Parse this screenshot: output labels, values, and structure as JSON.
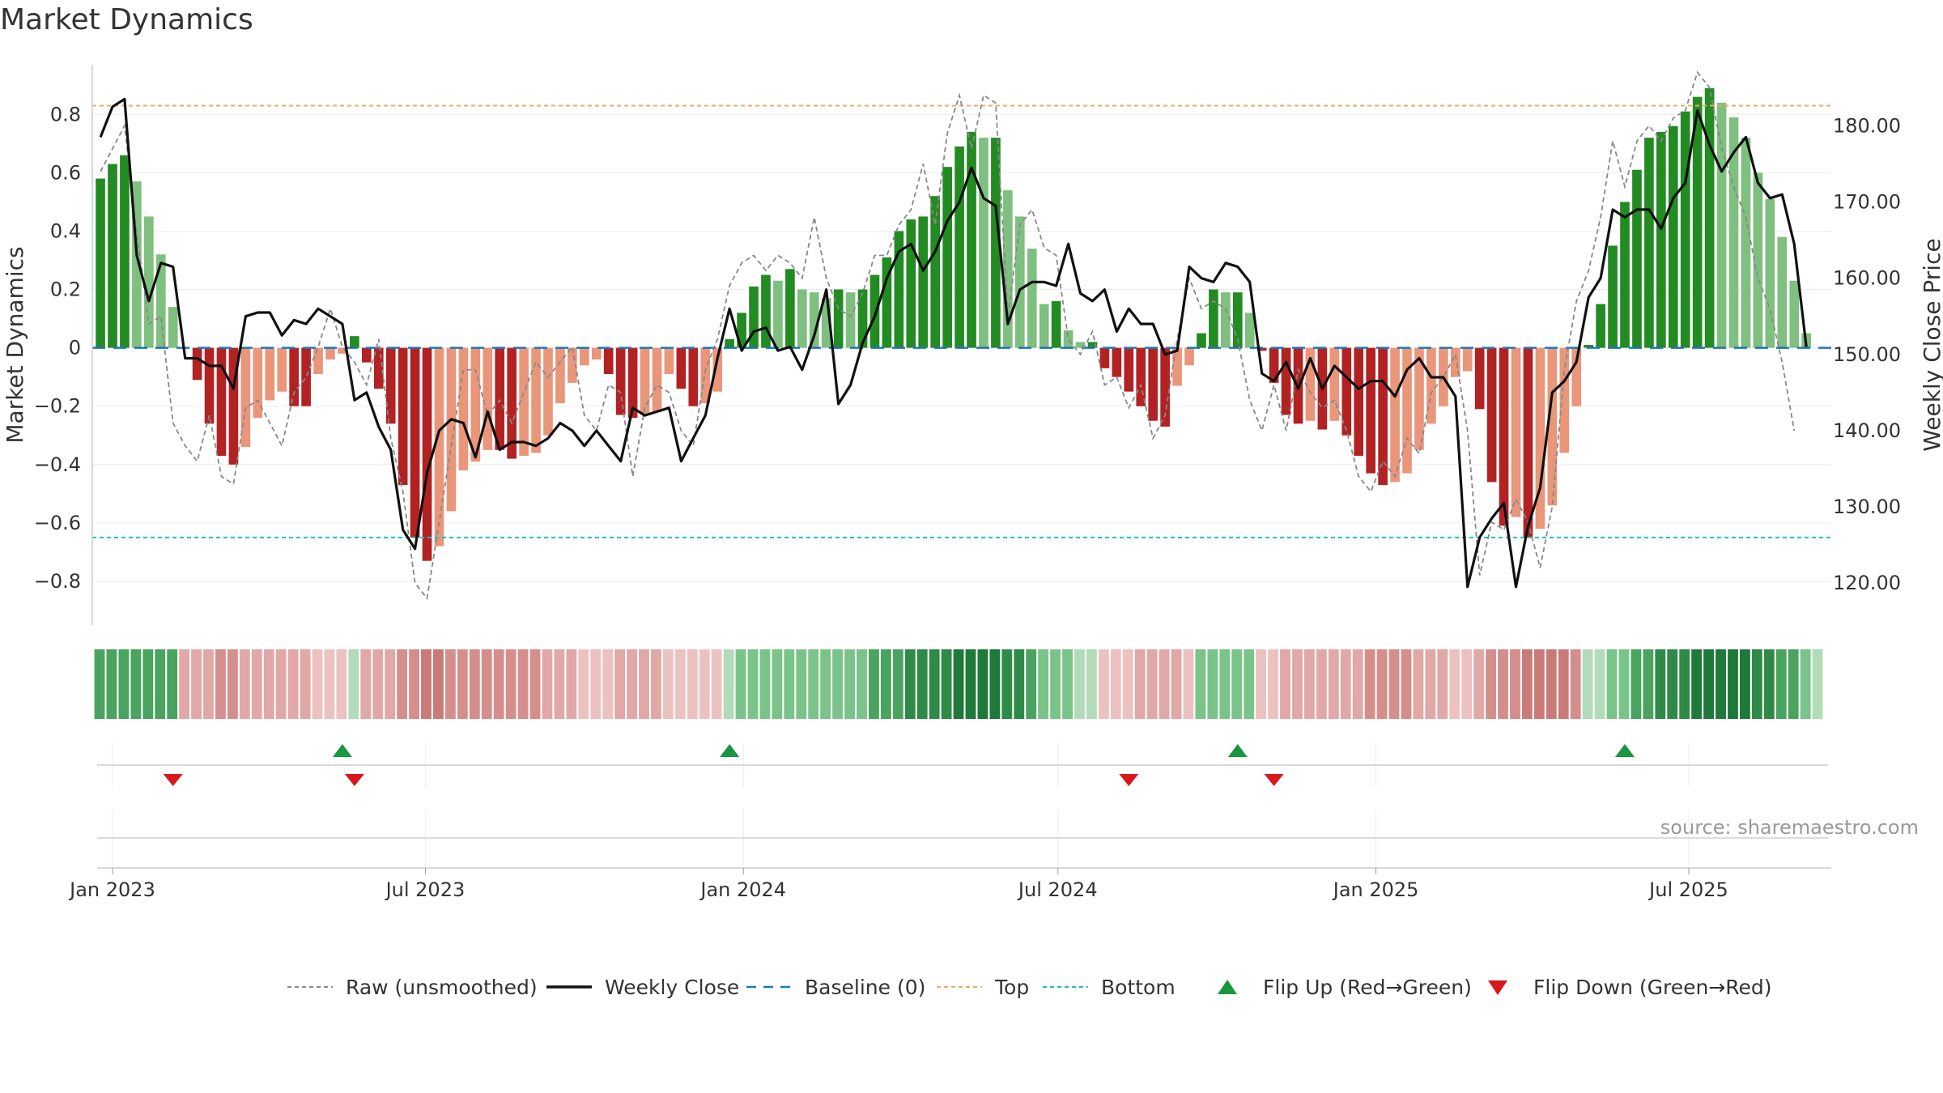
{
  "title": "Market Dynamics",
  "source": "source: sharemaestro.com",
  "colors": {
    "strong_green": "#228B22",
    "light_green": "#7FBF7F",
    "strong_red": "#B22222",
    "light_red": "#E9967A",
    "close_line": "#111111",
    "raw_line": "#888888",
    "baseline": "#1f77b4",
    "top": "#f0a868",
    "bottom": "#17becf",
    "flip_up": "#1a9641",
    "flip_down": "#d7191c"
  },
  "chart_data": {
    "type": "bar",
    "title": "Market Dynamics",
    "ylabel": "Market Dynamics",
    "y2label": "Weekly Close Price",
    "ylim": [
      -0.95,
      0.97
    ],
    "y2lim": [
      114.5,
      188.0
    ],
    "yticks": [
      0.8,
      0.6,
      0.4,
      0.2,
      0,
      -0.2,
      -0.4,
      -0.6,
      -0.8
    ],
    "ytick_labels": [
      "0.8",
      "0.6",
      "0.4",
      "0.2",
      "0",
      "−0.2",
      "−0.4",
      "−0.6",
      "−0.8"
    ],
    "y2ticks": [
      180,
      170,
      160,
      150,
      140,
      130,
      120
    ],
    "y2tick_labels": [
      "180.00",
      "170.00",
      "160.00",
      "150.00",
      "140.00",
      "130.00",
      "120.00"
    ],
    "xticks": [
      {
        "date": "2023-01-01",
        "label": "Jan 2023"
      },
      {
        "date": "2023-07-01",
        "label": "Jul 2023"
      },
      {
        "date": "2024-01-01",
        "label": "Jan 2024"
      },
      {
        "date": "2024-07-01",
        "label": "Jul 2024"
      },
      {
        "date": "2025-01-01",
        "label": "Jan 2025"
      },
      {
        "date": "2025-07-01",
        "label": "Jul 2025"
      }
    ],
    "first_week": "2022-12-25",
    "top_level": 0.83,
    "bottom_level": -0.65,
    "baseline": 0,
    "grid": true,
    "legend_position": "bottom",
    "dynamics": [
      0.58,
      0.63,
      0.66,
      0.57,
      0.45,
      0.32,
      0.14,
      0.0,
      -0.11,
      -0.26,
      -0.37,
      -0.4,
      -0.34,
      -0.24,
      -0.18,
      -0.15,
      -0.2,
      -0.2,
      -0.09,
      -0.04,
      -0.02,
      0.04,
      -0.05,
      -0.14,
      -0.26,
      -0.47,
      -0.65,
      -0.73,
      -0.68,
      -0.56,
      -0.42,
      -0.39,
      -0.35,
      -0.35,
      -0.38,
      -0.37,
      -0.36,
      -0.3,
      -0.19,
      -0.12,
      -0.06,
      -0.04,
      -0.09,
      -0.23,
      -0.24,
      -0.23,
      -0.22,
      -0.09,
      -0.14,
      -0.2,
      -0.19,
      -0.15,
      0.03,
      0.12,
      0.21,
      0.25,
      0.23,
      0.27,
      0.2,
      0.19,
      0.17,
      0.2,
      0.19,
      0.2,
      0.25,
      0.31,
      0.4,
      0.44,
      0.45,
      0.52,
      0.62,
      0.69,
      0.74,
      0.72,
      0.72,
      0.54,
      0.45,
      0.34,
      0.15,
      0.16,
      0.06,
      0.02,
      0.02,
      -0.07,
      -0.1,
      -0.15,
      -0.2,
      -0.25,
      -0.27,
      -0.13,
      -0.06,
      0.05,
      0.2,
      0.19,
      0.19,
      0.12,
      -0.01,
      -0.12,
      -0.23,
      -0.26,
      -0.25,
      -0.28,
      -0.25,
      -0.3,
      -0.37,
      -0.43,
      -0.47,
      -0.46,
      -0.43,
      -0.35,
      -0.26,
      -0.2,
      -0.1,
      -0.08,
      -0.21,
      -0.46,
      -0.61,
      -0.58,
      -0.65,
      -0.62,
      -0.54,
      -0.36,
      -0.2,
      0.01,
      0.15,
      0.35,
      0.5,
      0.61,
      0.72,
      0.74,
      0.76,
      0.81,
      0.86,
      0.89,
      0.84,
      0.79,
      0.72,
      0.6,
      0.51,
      0.38,
      0.23,
      0.05
    ],
    "weekly_close": [
      178.5,
      182.5,
      183.5,
      163.0,
      157.0,
      162.0,
      161.5,
      149.5,
      149.5,
      148.5,
      148.5,
      145.5,
      155.0,
      155.5,
      155.5,
      152.5,
      154.5,
      154.0,
      156.0,
      155.0,
      154.0,
      144.0,
      145.0,
      140.5,
      137.5,
      127.0,
      124.5,
      134.5,
      140.0,
      141.5,
      141.0,
      136.5,
      142.5,
      137.5,
      138.5,
      138.5,
      138.0,
      139.0,
      141.0,
      140.0,
      138.0,
      140.0,
      138.0,
      136.0,
      143.0,
      142.0,
      142.5,
      143.0,
      136.0,
      139.0,
      142.0,
      149.5,
      156.0,
      150.5,
      153.0,
      153.5,
      150.5,
      151.0,
      148.0,
      152.5,
      158.5,
      143.5,
      146.0,
      151.5,
      155.0,
      160.0,
      163.5,
      164.5,
      161.0,
      163.5,
      167.5,
      170.0,
      174.5,
      170.5,
      169.5,
      154.0,
      158.5,
      159.5,
      159.5,
      159.0,
      164.5,
      158.0,
      157.0,
      158.5,
      153.0,
      156.0,
      154.0,
      154.0,
      150.0,
      150.5,
      161.5,
      160.0,
      159.5,
      162.0,
      161.5,
      159.5,
      147.5,
      146.5,
      149.0,
      145.5,
      149.5,
      145.5,
      148.5,
      147.0,
      145.5,
      146.5,
      146.5,
      144.5,
      148.0,
      149.5,
      147.0,
      147.0,
      144.5,
      119.5,
      126.0,
      128.5,
      130.5,
      119.5,
      127.5,
      132.5,
      145.0,
      146.5,
      149.0,
      157.5,
      160.0,
      169.0,
      168.0,
      169.0,
      169.0,
      166.5,
      170.5,
      172.5,
      182.0,
      177.5,
      174.0,
      176.5,
      178.5,
      172.5,
      170.5,
      171.0,
      164.5,
      151.0
    ],
    "raw": [
      174,
      177,
      180,
      166,
      154,
      155,
      141,
      138,
      136,
      142,
      134,
      133,
      143,
      144,
      141,
      138,
      145,
      147,
      151,
      156,
      151,
      149,
      146,
      152,
      139,
      132,
      120,
      118,
      128,
      138,
      148,
      148,
      142,
      144,
      141,
      145,
      149,
      147,
      149,
      151,
      142,
      140,
      146,
      145,
      134,
      143,
      146,
      145,
      140,
      138,
      148,
      152,
      159,
      162,
      163,
      161,
      163,
      162,
      160,
      168,
      160,
      156,
      155,
      158,
      163,
      163,
      167,
      169,
      175,
      167,
      179,
      184,
      177,
      184,
      183,
      155,
      167,
      169,
      164,
      163,
      152,
      150,
      153,
      146,
      147,
      143,
      146,
      139,
      142,
      152,
      160,
      156,
      157,
      156,
      152,
      144,
      140,
      146,
      140,
      148,
      145,
      143,
      144,
      140,
      134,
      132,
      136,
      134,
      139,
      137,
      145,
      147,
      150,
      140,
      121,
      128,
      127,
      131,
      128,
      122,
      130,
      148,
      157,
      161,
      168,
      178,
      172,
      178,
      180,
      178,
      181,
      182,
      187,
      185,
      177,
      172,
      168,
      160,
      156,
      149,
      140
    ],
    "color_strip_levels": [
      4,
      4,
      4,
      4,
      4,
      4,
      4,
      -3,
      -3,
      -3,
      -4,
      -4,
      -3,
      -3,
      -3,
      -3,
      -3,
      -3,
      -2,
      -2,
      -2,
      2,
      -3,
      -3,
      -3,
      -4,
      -4,
      -5,
      -5,
      -4,
      -4,
      -4,
      -4,
      -4,
      -4,
      -4,
      -4,
      -3,
      -3,
      -3,
      -2,
      -2,
      -2,
      -3,
      -3,
      -3,
      -3,
      -2,
      -2,
      -2,
      -2,
      -2,
      2,
      3,
      3,
      3,
      3,
      3,
      3,
      3,
      3,
      3,
      3,
      3,
      4,
      4,
      4,
      5,
      5,
      5,
      5,
      6,
      6,
      6,
      6,
      5,
      5,
      4,
      3,
      3,
      3,
      2,
      2,
      -2,
      -2,
      -2,
      -3,
      -3,
      -3,
      -3,
      -2,
      3,
      3,
      3,
      3,
      3,
      -2,
      -2,
      -3,
      -3,
      -3,
      -3,
      -3,
      -3,
      -3,
      -4,
      -4,
      -4,
      -4,
      -3,
      -3,
      -3,
      -2,
      -2,
      -3,
      -4,
      -4,
      -4,
      -5,
      -5,
      -5,
      -5,
      -4,
      2,
      2,
      3,
      3,
      4,
      4,
      5,
      5,
      5,
      6,
      6,
      6,
      6,
      6,
      5,
      5,
      4,
      4,
      3,
      2
    ],
    "flip_up": [
      "2023-05-14",
      "2023-12-24",
      "2024-10-13",
      "2025-05-25"
    ],
    "flip_down": [
      "2023-02-05",
      "2023-05-21",
      "2024-08-11",
      "2024-11-03"
    ],
    "legend": [
      {
        "key": "raw",
        "label": "Raw (unsmoothed)"
      },
      {
        "key": "close",
        "label": "Weekly Close"
      },
      {
        "key": "baseline",
        "label": "Baseline (0)"
      },
      {
        "key": "top",
        "label": "Top"
      },
      {
        "key": "bottom",
        "label": "Bottom"
      },
      {
        "key": "flip_up",
        "label": "Flip Up (Red→Green)"
      },
      {
        "key": "flip_down",
        "label": "Flip Down (Green→Red)"
      }
    ]
  }
}
